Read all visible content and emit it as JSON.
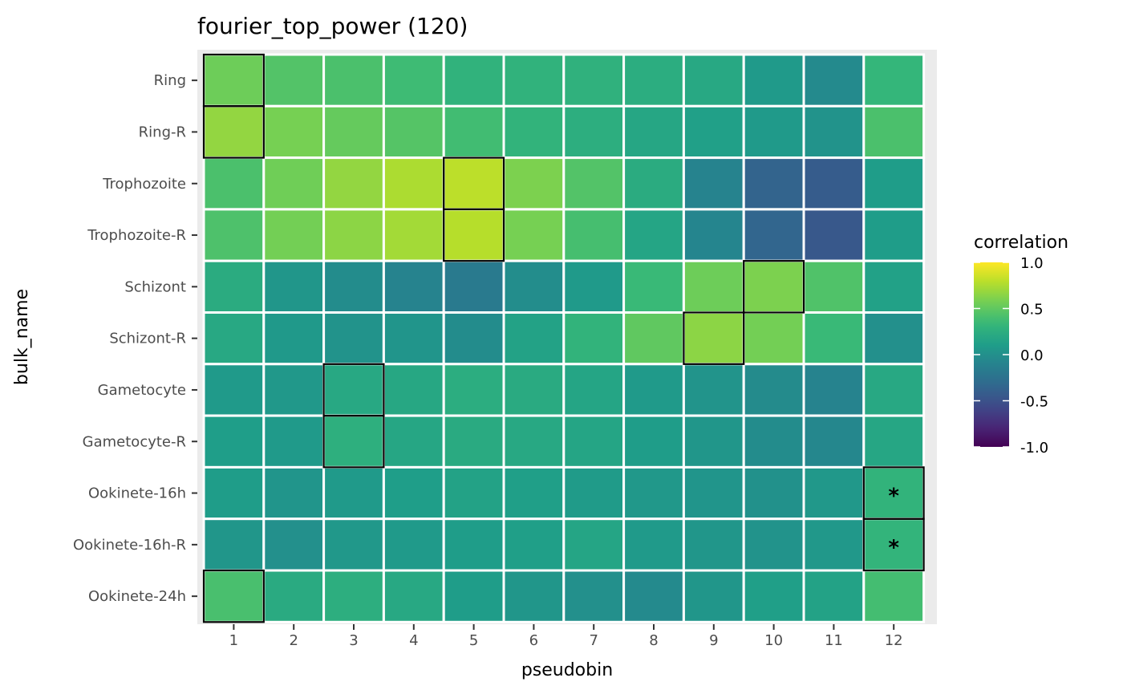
{
  "chart_data": {
    "type": "heatmap",
    "title": "fourier_top_power (120)",
    "xlabel": "pseudobin",
    "ylabel": "bulk_name",
    "x": [
      "1",
      "2",
      "3",
      "4",
      "5",
      "6",
      "7",
      "8",
      "9",
      "10",
      "11",
      "12"
    ],
    "y": [
      "Ring",
      "Ring-R",
      "Trophozoite",
      "Trophozoite-R",
      "Schizont",
      "Schizont-R",
      "Gametocyte",
      "Gametocyte-R",
      "Ookinete-16h",
      "Ookinete-16h-R",
      "Ookinete-24h"
    ],
    "values": [
      [
        0.55,
        0.45,
        0.42,
        0.37,
        0.29,
        0.29,
        0.28,
        0.24,
        0.2,
        0.08,
        -0.05,
        0.32
      ],
      [
        0.67,
        0.58,
        0.52,
        0.46,
        0.38,
        0.3,
        0.25,
        0.18,
        0.13,
        0.08,
        0.02,
        0.42
      ],
      [
        0.42,
        0.56,
        0.67,
        0.75,
        0.8,
        0.6,
        0.45,
        0.23,
        -0.1,
        -0.36,
        -0.42,
        0.1
      ],
      [
        0.43,
        0.57,
        0.65,
        0.72,
        0.78,
        0.58,
        0.4,
        0.17,
        -0.09,
        -0.35,
        -0.45,
        0.1
      ],
      [
        0.23,
        0.05,
        -0.03,
        -0.1,
        -0.18,
        -0.02,
        0.08,
        0.35,
        0.55,
        0.6,
        0.44,
        0.14
      ],
      [
        0.2,
        0.07,
        0.02,
        0.04,
        -0.03,
        0.15,
        0.3,
        0.5,
        0.65,
        0.57,
        0.35,
        0.0
      ],
      [
        0.08,
        0.06,
        0.2,
        0.19,
        0.24,
        0.22,
        0.17,
        0.08,
        0.03,
        -0.04,
        -0.1,
        0.2
      ],
      [
        0.11,
        0.08,
        0.26,
        0.18,
        0.22,
        0.2,
        0.17,
        0.1,
        0.05,
        -0.03,
        -0.07,
        0.18
      ],
      [
        0.1,
        0.04,
        0.08,
        0.11,
        0.15,
        0.12,
        0.09,
        0.06,
        0.04,
        0.01,
        0.06,
        0.3
      ],
      [
        0.05,
        0.0,
        0.06,
        0.08,
        0.1,
        0.12,
        0.17,
        0.08,
        0.05,
        0.02,
        0.06,
        0.31
      ],
      [
        0.41,
        0.22,
        0.25,
        0.2,
        0.1,
        0.05,
        0.0,
        -0.05,
        0.05,
        0.12,
        0.15,
        0.39
      ]
    ],
    "highlighted": [
      {
        "x": "1",
        "y": "Ring"
      },
      {
        "x": "1",
        "y": "Ring-R"
      },
      {
        "x": "5",
        "y": "Trophozoite"
      },
      {
        "x": "5",
        "y": "Trophozoite-R"
      },
      {
        "x": "10",
        "y": "Schizont"
      },
      {
        "x": "9",
        "y": "Schizont-R"
      },
      {
        "x": "3",
        "y": "Gametocyte"
      },
      {
        "x": "3",
        "y": "Gametocyte-R"
      },
      {
        "x": "12",
        "y": "Ookinete-16h"
      },
      {
        "x": "12",
        "y": "Ookinete-16h-R"
      },
      {
        "x": "1",
        "y": "Ookinete-24h"
      }
    ],
    "annotations": [
      {
        "x": "12",
        "y": "Ookinete-16h",
        "text": "*"
      },
      {
        "x": "12",
        "y": "Ookinete-16h-R",
        "text": "*"
      }
    ],
    "legend": {
      "title": "correlation",
      "position": "right",
      "range": [
        -1.0,
        1.0
      ],
      "ticks": [
        "1.0",
        "0.5",
        "0.0",
        "-0.5",
        "-1.0"
      ],
      "colorscale": "viridis"
    },
    "grid": true
  }
}
